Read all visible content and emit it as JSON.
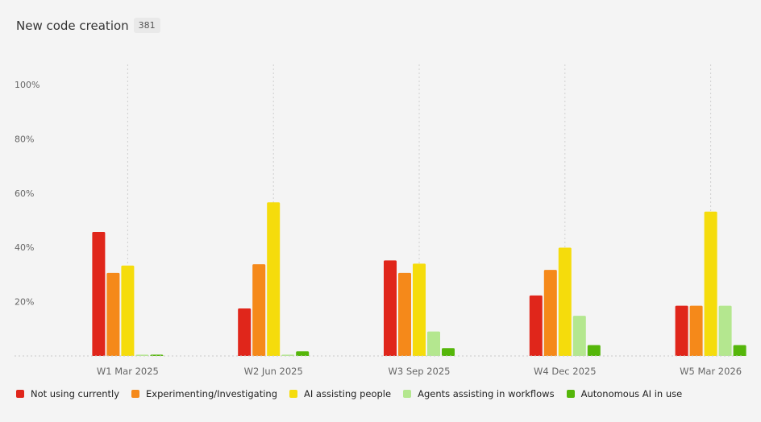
{
  "header": {
    "title": "New code creation",
    "count": "381"
  },
  "chart_data": {
    "type": "bar",
    "categories": [
      "W1 Mar 2025",
      "W2 Jun 2025",
      "W3 Sep 2025",
      "W4 Dec 2025",
      "W5 Mar 2026"
    ],
    "series": [
      {
        "name": "Not using currently",
        "color": "#e0261b",
        "values": [
          45.7,
          17.5,
          35.2,
          22.3,
          18.5
        ]
      },
      {
        "name": "Experimenting/Investigating",
        "color": "#f5891a",
        "values": [
          30.6,
          33.8,
          30.6,
          31.7,
          18.5
        ]
      },
      {
        "name": "AI assisting people",
        "color": "#f5dc0c",
        "values": [
          33.3,
          56.6,
          34.0,
          39.9,
          53.2
        ]
      },
      {
        "name": "Agents assisting in workflows",
        "color": "#b4e78f",
        "values": [
          0.5,
          0.5,
          9.0,
          14.8,
          18.5
        ]
      },
      {
        "name": "Autonomous AI in use",
        "color": "#55b60a",
        "values": [
          0.5,
          1.7,
          2.9,
          4.0,
          4.0
        ]
      }
    ],
    "yticks": [
      "100%",
      "80%",
      "60%",
      "40%",
      "20%"
    ],
    "ytick_values": [
      100,
      80,
      60,
      40,
      20
    ],
    "ylim": [
      0,
      100
    ],
    "grid": "vertical dotted",
    "legend": "bottom"
  }
}
